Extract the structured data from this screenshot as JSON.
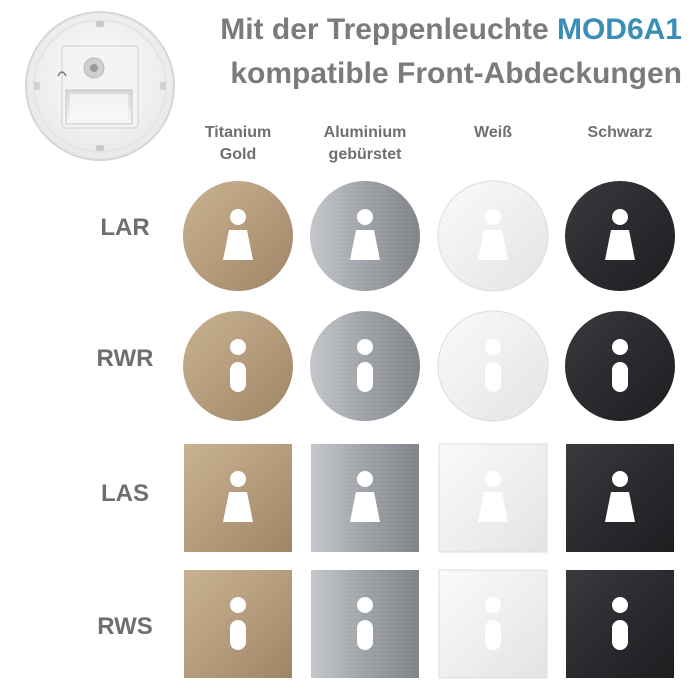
{
  "title": {
    "line1_prefix": "Mit der Treppenleuchte ",
    "line1_model": "MOD6A1",
    "line2": "kompatible Front-Abdeckungen"
  },
  "colors": {
    "accent": "#3a8db5",
    "text_gray": "#7b7b7b"
  },
  "columns": [
    {
      "line1": "Titanium",
      "line2": "Gold",
      "finish": "gold"
    },
    {
      "line1": "Aluminium",
      "line2": "gebürstet",
      "finish": "alu"
    },
    {
      "line1": "Weiß",
      "line2": "",
      "finish": "white"
    },
    {
      "line1": "Schwarz",
      "line2": "",
      "finish": "black"
    }
  ],
  "rows": [
    {
      "label": "LAR",
      "shape": "round",
      "symbol": "lamp-symbol-icon"
    },
    {
      "label": "RWR",
      "shape": "round",
      "symbol": "info-symbol-icon"
    },
    {
      "label": "LAS",
      "shape": "square",
      "symbol": "lamp-symbol-icon"
    },
    {
      "label": "RWS",
      "shape": "square",
      "symbol": "info-symbol-icon"
    }
  ],
  "finish_colors": {
    "gold": {
      "fill": "#b59c7c",
      "light": "#c8b292",
      "dark": "#9e8566"
    },
    "alu": {
      "fill": "#9ea2a7",
      "light": "#c3c6ca",
      "dark": "#7f8388"
    },
    "white": {
      "fill": "#efeff0",
      "light": "#fafafa",
      "dark": "#e2e3e5"
    },
    "black": {
      "fill": "#2b2b2f",
      "light": "#3a3a3e",
      "dark": "#1e1e21"
    }
  }
}
